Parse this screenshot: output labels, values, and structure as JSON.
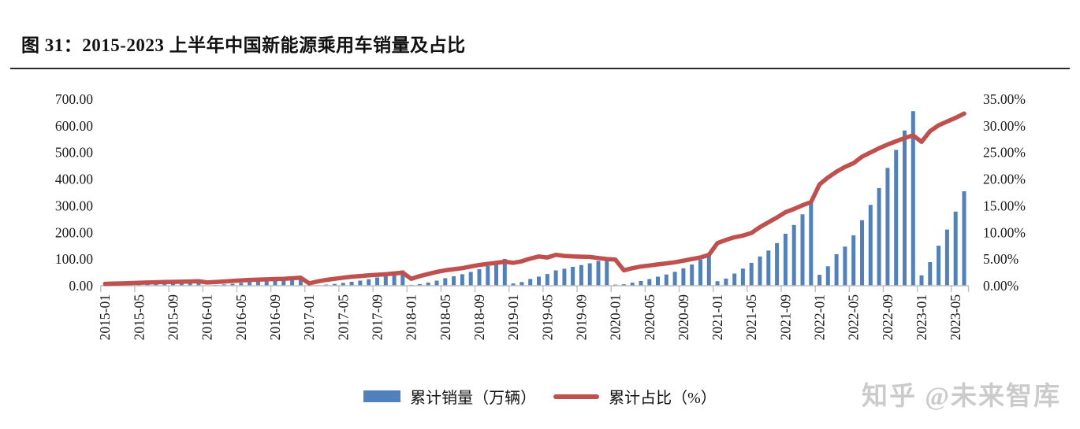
{
  "header": {
    "title": "图 31：2015-2023 上半年中国新能源乘用车销量及占比"
  },
  "watermark": "知乎 @未来智库",
  "legend": [
    {
      "label": "累计销量（万辆）",
      "color": "#4F81BD",
      "type": "bar"
    },
    {
      "label": "累计占比（%）",
      "color": "#C0504D",
      "type": "line"
    }
  ],
  "chart_data": {
    "type": "combo-bar-line",
    "title": "图 31：2015-2023 上半年中国新能源乘用车销量及占比",
    "grid": false,
    "bar_color": "#4F81BD",
    "line_color": "#C0504D",
    "axis_color": "#BFBFBF",
    "text_color": "#1a1a1a",
    "left_axis": {
      "max": 700,
      "min": 0,
      "labels": [
        "700.00",
        "600.00",
        "500.00",
        "400.00",
        "300.00",
        "200.00",
        "100.00",
        "0.00"
      ]
    },
    "right_axis": {
      "max": 35,
      "min": 0,
      "labels": [
        "35.00%",
        "30.00%",
        "25.00%",
        "20.00%",
        "15.00%",
        "10.00%",
        "5.00%",
        "0.00%"
      ]
    },
    "x_tick_labels": [
      "2015-01",
      "2015-05",
      "2015-09",
      "2016-01",
      "2016-05",
      "2016-09",
      "2017-01",
      "2017-05",
      "2017-09",
      "2018-01",
      "2018-05",
      "2018-09",
      "2019-01",
      "2019-05",
      "2019-09",
      "2020-01",
      "2020-05",
      "2020-09",
      "2021-01",
      "2021-05",
      "2021-09",
      "2022-01",
      "2022-05",
      "2022-09",
      "2023-01",
      "2023-05"
    ],
    "x": [
      "2015-01",
      "2015-02",
      "2015-03",
      "2015-04",
      "2015-05",
      "2015-06",
      "2015-07",
      "2015-08",
      "2015-09",
      "2015-10",
      "2015-11",
      "2015-12",
      "2016-01",
      "2016-02",
      "2016-03",
      "2016-04",
      "2016-05",
      "2016-06",
      "2016-07",
      "2016-08",
      "2016-09",
      "2016-10",
      "2016-11",
      "2016-12",
      "2017-01",
      "2017-02",
      "2017-03",
      "2017-04",
      "2017-05",
      "2017-06",
      "2017-07",
      "2017-08",
      "2017-09",
      "2017-10",
      "2017-11",
      "2017-12",
      "2018-01",
      "2018-02",
      "2018-03",
      "2018-04",
      "2018-05",
      "2018-06",
      "2018-07",
      "2018-08",
      "2018-09",
      "2018-10",
      "2018-11",
      "2018-12",
      "2019-01",
      "2019-02",
      "2019-03",
      "2019-04",
      "2019-05",
      "2019-06",
      "2019-07",
      "2019-08",
      "2019-09",
      "2019-10",
      "2019-11",
      "2019-12",
      "2020-01",
      "2020-02",
      "2020-03",
      "2020-04",
      "2020-05",
      "2020-06",
      "2020-07",
      "2020-08",
      "2020-09",
      "2020-10",
      "2020-11",
      "2020-12",
      "2021-01",
      "2021-02",
      "2021-03",
      "2021-04",
      "2021-05",
      "2021-06",
      "2021-07",
      "2021-08",
      "2021-09",
      "2021-10",
      "2021-11",
      "2021-12",
      "2022-01",
      "2022-02",
      "2022-03",
      "2022-04",
      "2022-05",
      "2022-06",
      "2022-07",
      "2022-08",
      "2022-09",
      "2022-10",
      "2022-11",
      "2022-12",
      "2023-01",
      "2023-02",
      "2023-03",
      "2023-04",
      "2023-05",
      "2023-06"
    ],
    "series": [
      {
        "name": "累计销量（万辆）",
        "type": "bar",
        "axis": "left",
        "values": [
          0.6,
          1.2,
          2.0,
          2.9,
          3.9,
          5.2,
          6.4,
          7.8,
          9.5,
          11.4,
          13.8,
          17.7,
          1.4,
          2.9,
          5.0,
          7.5,
          10.5,
          13.9,
          17.2,
          20.8,
          24.9,
          28.1,
          30.5,
          32.9,
          0.5,
          1.7,
          4.0,
          6.9,
          10.5,
          14.9,
          19.2,
          24.5,
          30.9,
          37.9,
          46.2,
          57.6,
          3.2,
          6.2,
          11.7,
          19.1,
          28.3,
          35.8,
          43.0,
          52.0,
          62.3,
          74.0,
          87.5,
          100.8,
          8.5,
          13.9,
          25.3,
          34.4,
          44.0,
          57.7,
          63.9,
          71.0,
          77.6,
          84.1,
          93.2,
          106.4,
          4.1,
          5.7,
          11.4,
          17.9,
          25.2,
          34.1,
          42.1,
          52.4,
          65.3,
          79.7,
          97.7,
          117.0,
          16.8,
          26.9,
          45.9,
          64.3,
          86.0,
          110.0,
          132.0,
          160.0,
          195.0,
          228.0,
          268.0,
          315.0,
          41.2,
          72.9,
          118.4,
          146.7,
          188.9,
          246.1,
          303.4,
          366.6,
          442.1,
          509.8,
          582.3,
          655.0,
          38.9,
          88.6,
          150.3,
          211.0,
          278.3,
          354.4
        ]
      },
      {
        "name": "累计占比（%）",
        "type": "line",
        "axis": "right",
        "values": [
          0.35,
          0.4,
          0.45,
          0.5,
          0.55,
          0.6,
          0.65,
          0.7,
          0.72,
          0.75,
          0.8,
          0.85,
          0.6,
          0.7,
          0.8,
          0.9,
          1.0,
          1.1,
          1.15,
          1.2,
          1.25,
          1.3,
          1.4,
          1.5,
          0.45,
          0.8,
          1.1,
          1.3,
          1.5,
          1.7,
          1.8,
          1.95,
          2.05,
          2.15,
          2.3,
          2.45,
          1.3,
          1.8,
          2.2,
          2.6,
          2.9,
          3.1,
          3.3,
          3.6,
          3.9,
          4.1,
          4.3,
          4.5,
          4.3,
          4.6,
          5.1,
          5.5,
          5.3,
          5.8,
          5.6,
          5.5,
          5.45,
          5.4,
          5.2,
          5.0,
          4.9,
          2.9,
          3.3,
          3.6,
          3.8,
          4.0,
          4.2,
          4.4,
          4.7,
          5.0,
          5.3,
          5.8,
          8.0,
          8.6,
          9.1,
          9.4,
          9.9,
          11.0,
          11.9,
          12.8,
          13.8,
          14.4,
          15.1,
          15.7,
          19.0,
          20.3,
          21.4,
          22.3,
          23.0,
          24.2,
          25.0,
          25.8,
          26.5,
          27.1,
          27.7,
          28.2,
          27.0,
          29.0,
          30.1,
          30.8,
          31.5,
          32.3
        ]
      }
    ]
  }
}
